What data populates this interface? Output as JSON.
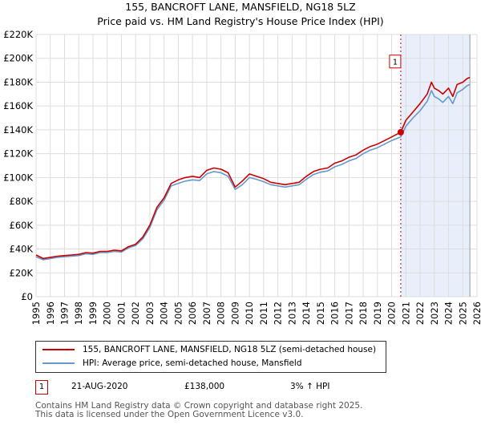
{
  "chart_data": {
    "type": "line",
    "title": "155, BANCROFT LANE, MANSFIELD, NG18 5LZ",
    "subtitle": "Price paid vs. HM Land Registry's House Price Index (HPI)",
    "xlim": [
      1995,
      2026
    ],
    "ylim": [
      0,
      220000
    ],
    "x_ticks": [
      1995,
      1996,
      1997,
      1998,
      1999,
      2000,
      2001,
      2002,
      2003,
      2004,
      2005,
      2006,
      2007,
      2008,
      2009,
      2010,
      2011,
      2012,
      2013,
      2014,
      2015,
      2016,
      2017,
      2018,
      2019,
      2020,
      2021,
      2022,
      2023,
      2024,
      2025,
      2026
    ],
    "y_ticks": [
      0,
      20000,
      40000,
      60000,
      80000,
      100000,
      120000,
      140000,
      160000,
      180000,
      200000,
      220000
    ],
    "y_tick_labels": [
      "£0",
      "£20K",
      "£40K",
      "£60K",
      "£80K",
      "£100K",
      "£120K",
      "£140K",
      "£160K",
      "£180K",
      "£200K",
      "£220K"
    ],
    "grid": true,
    "series": [
      {
        "name": "155, BANCROFT LANE, MANSFIELD, NG18 5LZ (semi-detached house)",
        "color": "#cc0000",
        "x": [
          1995.0,
          1995.5,
          1996.0,
          1996.5,
          1997.0,
          1997.5,
          1998.0,
          1998.5,
          1999.0,
          1999.5,
          2000.0,
          2000.5,
          2001.0,
          2001.5,
          2002.0,
          2002.5,
          2003.0,
          2003.5,
          2004.0,
          2004.5,
          2005.0,
          2005.5,
          2006.0,
          2006.5,
          2007.0,
          2007.5,
          2008.0,
          2008.5,
          2009.0,
          2009.5,
          2010.0,
          2010.5,
          2011.0,
          2011.5,
          2012.0,
          2012.5,
          2013.0,
          2013.5,
          2014.0,
          2014.5,
          2015.0,
          2015.5,
          2016.0,
          2016.5,
          2017.0,
          2017.5,
          2018.0,
          2018.5,
          2019.0,
          2019.5,
          2020.0,
          2020.64,
          2021.0,
          2021.5,
          2022.0,
          2022.5,
          2022.8,
          2023.0,
          2023.3,
          2023.6,
          2024.0,
          2024.3,
          2024.6,
          2025.0,
          2025.3,
          2025.5
        ],
        "values": [
          35000,
          32000,
          33000,
          34000,
          34500,
          35000,
          35500,
          37000,
          36500,
          38000,
          38000,
          39000,
          38500,
          42000,
          44000,
          50000,
          60000,
          75000,
          83000,
          95000,
          98000,
          100000,
          101000,
          100000,
          106000,
          108000,
          107000,
          104000,
          92000,
          97000,
          103000,
          101000,
          99000,
          96000,
          95000,
          94000,
          95000,
          96000,
          101000,
          105000,
          107000,
          108000,
          112000,
          114000,
          117000,
          119000,
          123000,
          126000,
          128000,
          131000,
          134000,
          138000,
          148000,
          155000,
          162000,
          170000,
          180000,
          175000,
          173000,
          170000,
          175000,
          168000,
          178000,
          180000,
          183000,
          184000
        ]
      },
      {
        "name": "HPI: Average price, semi-detached house, Mansfield",
        "color": "#6699cc",
        "x": [
          1995.0,
          1995.5,
          1996.0,
          1996.5,
          1997.0,
          1997.5,
          1998.0,
          1998.5,
          1999.0,
          1999.5,
          2000.0,
          2000.5,
          2001.0,
          2001.5,
          2002.0,
          2002.5,
          2003.0,
          2003.5,
          2004.0,
          2004.5,
          2005.0,
          2005.5,
          2006.0,
          2006.5,
          2007.0,
          2007.5,
          2008.0,
          2008.5,
          2009.0,
          2009.5,
          2010.0,
          2010.5,
          2011.0,
          2011.5,
          2012.0,
          2012.5,
          2013.0,
          2013.5,
          2014.0,
          2014.5,
          2015.0,
          2015.5,
          2016.0,
          2016.5,
          2017.0,
          2017.5,
          2018.0,
          2018.5,
          2019.0,
          2019.5,
          2020.0,
          2020.64,
          2021.0,
          2021.5,
          2022.0,
          2022.5,
          2022.8,
          2023.0,
          2023.3,
          2023.6,
          2024.0,
          2024.3,
          2024.6,
          2025.0,
          2025.3,
          2025.5
        ],
        "values": [
          33500,
          31000,
          32000,
          33000,
          33500,
          34000,
          34500,
          36000,
          35500,
          37000,
          37000,
          38000,
          37500,
          41000,
          43000,
          48500,
          58000,
          73000,
          81000,
          93000,
          95000,
          97000,
          98000,
          97500,
          103000,
          105000,
          104000,
          101000,
          90000,
          94000,
          100000,
          98500,
          96500,
          94000,
          93000,
          92000,
          93000,
          94000,
          98500,
          102500,
          104500,
          105500,
          109000,
          111000,
          114000,
          116000,
          120000,
          123000,
          125000,
          128000,
          131000,
          134000,
          143000,
          150000,
          156000,
          164000,
          173000,
          168000,
          166000,
          163000,
          168000,
          162000,
          171000,
          174000,
          177000,
          178000
        ]
      }
    ],
    "annotations": [
      {
        "label": "1",
        "x": 2020.64,
        "value": 138000
      }
    ],
    "shaded_range": [
      2020.64,
      2025.5
    ]
  },
  "legend": {
    "items": [
      {
        "label": "155, BANCROFT LANE, MANSFIELD, NG18 5LZ (semi-detached house)",
        "color": "#cc0000"
      },
      {
        "label": "HPI: Average price, semi-detached house, Mansfield",
        "color": "#6699cc"
      }
    ]
  },
  "transaction": {
    "marker": "1",
    "date": "21-AUG-2020",
    "price": "£138,000",
    "hpi": "3% ↑ HPI"
  },
  "footer": {
    "line1": "Contains HM Land Registry data © Crown copyright and database right 2025.",
    "line2": "This data is licensed under the Open Government Licence v3.0."
  }
}
